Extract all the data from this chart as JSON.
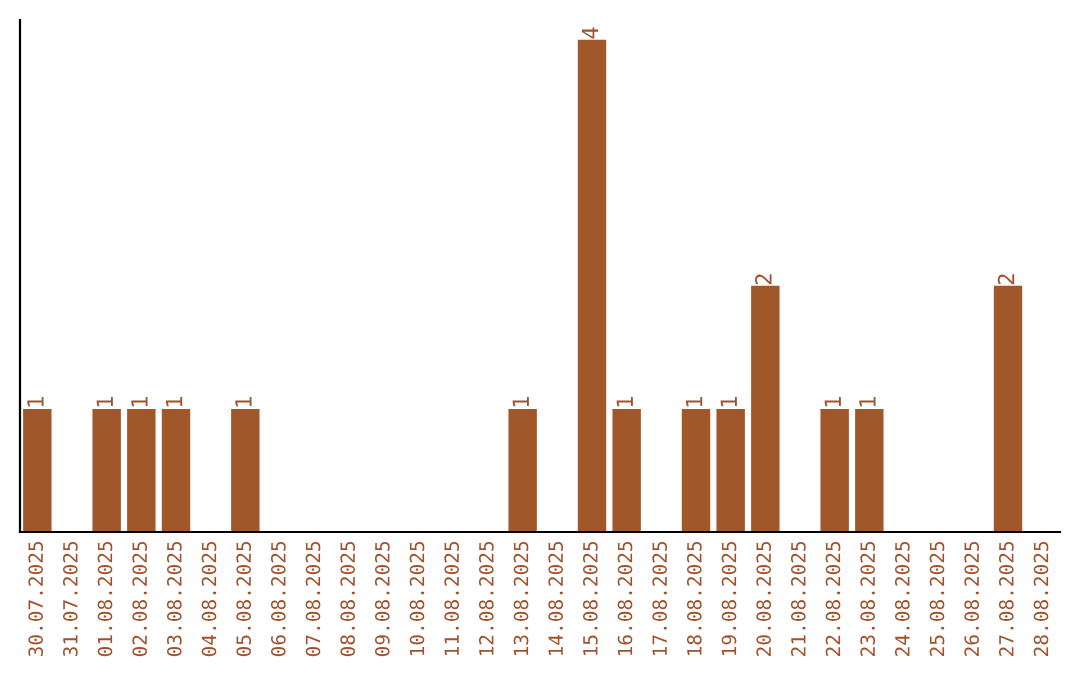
{
  "chart_data": {
    "type": "bar",
    "categories": [
      "30.07.2025",
      "31.07.2025",
      "01.08.2025",
      "02.08.2025",
      "03.08.2025",
      "04.08.2025",
      "05.08.2025",
      "06.08.2025",
      "07.08.2025",
      "08.08.2025",
      "09.08.2025",
      "10.08.2025",
      "11.08.2025",
      "12.08.2025",
      "13.08.2025",
      "14.08.2025",
      "15.08.2025",
      "16.08.2025",
      "17.08.2025",
      "18.08.2025",
      "19.08.2025",
      "20.08.2025",
      "21.08.2025",
      "22.08.2025",
      "23.08.2025",
      "24.08.2025",
      "25.08.2025",
      "26.08.2025",
      "27.08.2025",
      "28.08.2025"
    ],
    "values": [
      1,
      0,
      1,
      1,
      1,
      0,
      1,
      0,
      0,
      0,
      0,
      0,
      0,
      0,
      1,
      0,
      4,
      1,
      0,
      1,
      1,
      2,
      0,
      1,
      1,
      0,
      0,
      0,
      2,
      0
    ],
    "value_labels": [
      "1",
      null,
      "1",
      "1",
      "1",
      null,
      "1",
      null,
      null,
      null,
      null,
      null,
      null,
      null,
      "1",
      null,
      "4",
      "1",
      null,
      "1",
      "1",
      "2",
      null,
      "1",
      "1",
      null,
      null,
      null,
      "2",
      null
    ],
    "color": "#a0572a",
    "ylim": [
      0,
      4.16
    ],
    "tick_labels": "x",
    "grid": false
  }
}
